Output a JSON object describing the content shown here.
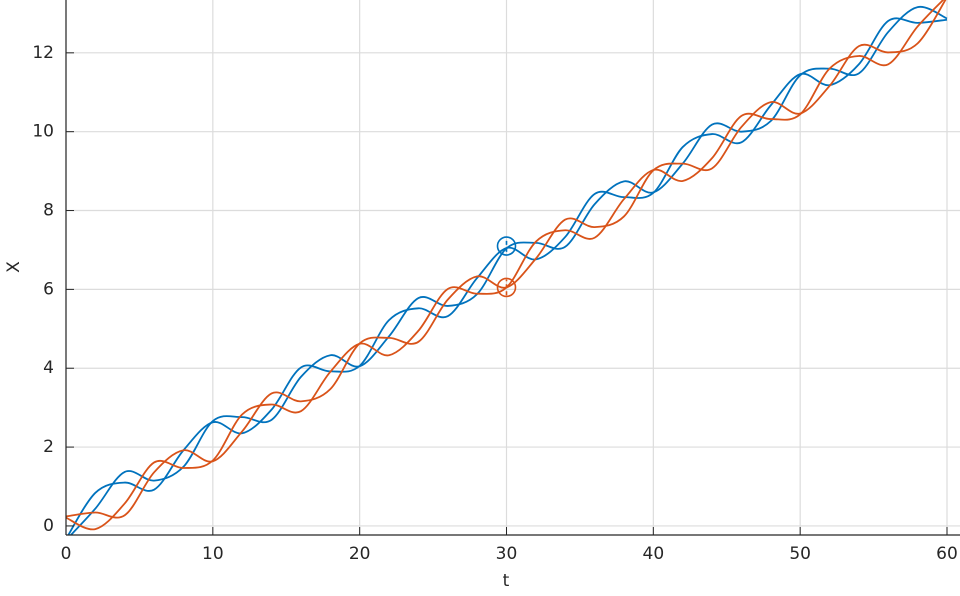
{
  "chart_data": {
    "type": "line",
    "xlabel": "t",
    "ylabel": "X",
    "x": [
      0,
      2,
      4,
      6,
      8,
      10,
      12,
      14,
      16,
      18,
      20,
      22,
      24,
      26,
      28,
      30,
      32,
      34,
      36,
      38,
      40,
      42,
      44,
      46,
      48,
      50,
      52,
      54,
      56,
      58,
      60
    ],
    "series": [
      {
        "color": "#0072BD",
        "values": [
          -0.33,
          0.84,
          1.1,
          0.92,
          1.92,
          2.63,
          2.35,
          2.95,
          4.02,
          3.92,
          4.06,
          5.22,
          5.52,
          5.32,
          6.29,
          7.05,
          6.76,
          7.33,
          8.42,
          8.34,
          8.45,
          9.61,
          9.94,
          9.73,
          10.67,
          11.46,
          11.18,
          11.71,
          12.81,
          12.76,
          12.84
        ]
      },
      {
        "color": "#0072BD",
        "values": [
          -0.36,
          0.44,
          1.37,
          1.15,
          1.5,
          2.66,
          2.76,
          2.69,
          3.78,
          4.33,
          4.05,
          4.81,
          5.78,
          5.58,
          5.88,
          7.04,
          7.18,
          7.08,
          8.16,
          8.74,
          8.46,
          9.19,
          10.18,
          10.0,
          10.27,
          11.43,
          11.6,
          11.48,
          12.53,
          13.16,
          12.87
        ]
      },
      {
        "color": "#D95319",
        "values": [
          0.21,
          -0.08,
          0.57,
          1.61,
          1.47,
          1.66,
          2.83,
          3.08,
          2.91,
          3.91,
          4.62,
          4.33,
          4.95,
          6.01,
          5.89,
          6.05,
          7.21,
          7.5,
          7.31,
          8.29,
          9.03,
          8.75,
          9.33,
          10.4,
          10.32,
          10.44,
          11.6,
          11.92,
          11.71,
          12.67,
          13.44
        ]
      },
      {
        "color": "#D95319",
        "values": [
          0.24,
          0.34,
          0.27,
          1.36,
          1.92,
          1.64,
          2.4,
          3.36,
          3.16,
          3.47,
          4.63,
          4.77,
          4.67,
          5.74,
          6.33,
          6.05,
          6.78,
          7.77,
          7.58,
          7.85,
          9.02,
          9.19,
          9.07,
          10.12,
          10.75,
          10.46,
          11.16,
          12.17,
          12.01,
          12.24,
          13.41
        ]
      }
    ],
    "points": [
      {
        "color": "#0072BD",
        "x": 30,
        "y": 7.1,
        "error": 0.15
      },
      {
        "color": "#D95319",
        "x": 30,
        "y": 6.05,
        "error": 0.2
      }
    ],
    "xlim": [
      0,
      60
    ],
    "ylim": [
      -0.23,
      13.34
    ],
    "xticks": [
      0,
      10,
      20,
      30,
      40,
      50,
      60
    ],
    "yticks": [
      0,
      2,
      4,
      6,
      8,
      10,
      12
    ],
    "grid": true
  }
}
